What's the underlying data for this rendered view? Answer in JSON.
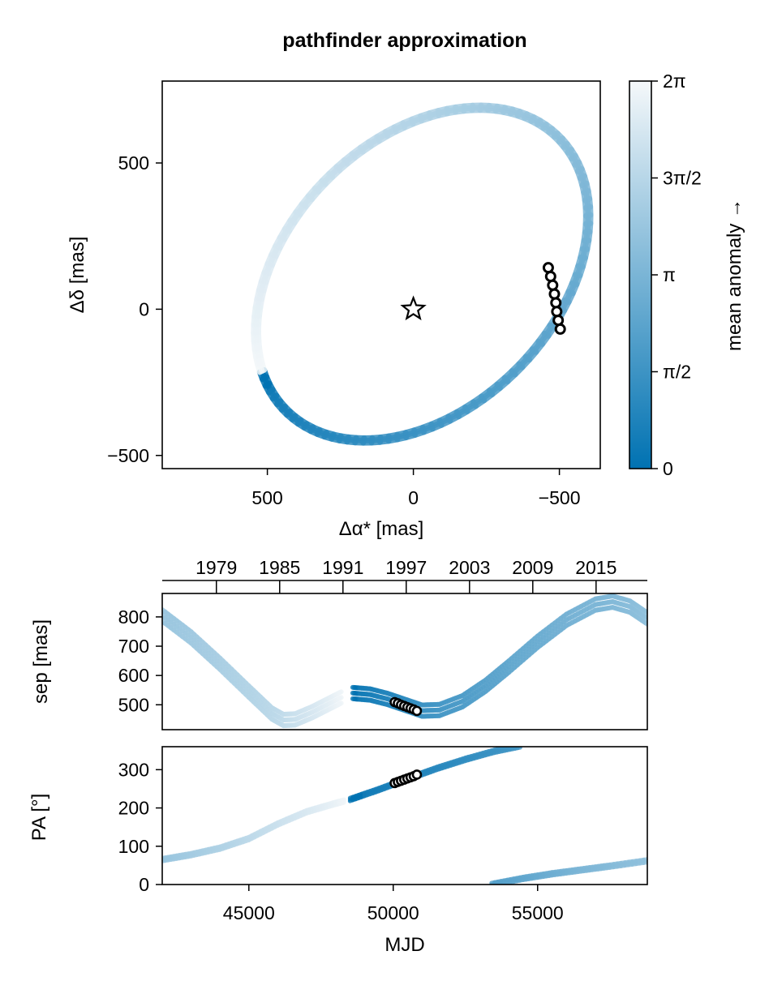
{
  "title": "pathfinder approximation",
  "colors": {
    "title": "#8b0000",
    "band_start": "#0072b2",
    "band_end": "#f5f8fa"
  },
  "chart_data": [
    {
      "id": "orbit",
      "type": "scatter",
      "xlabel": "Δα* [mas]",
      "ylabel": "Δδ [mas]",
      "xlim": [
        860,
        -640
      ],
      "ylim": [
        -545,
        780
      ],
      "x_reversed": true,
      "xticks": [
        500,
        0,
        -500
      ],
      "xtick_labels": [
        "500",
        "0",
        "−500"
      ],
      "yticks": [
        -500,
        0,
        500
      ],
      "ytick_labels": [
        "−500",
        "0",
        "500"
      ],
      "ellipse": {
        "center": [
          -30,
          120
        ],
        "semi_major": 660,
        "semi_minor": 460,
        "rotation_deg": -45
      },
      "star": {
        "x": 0,
        "y": 0,
        "marker": "star"
      },
      "observations": {
        "x": [
          -462,
          -470,
          -477,
          -483,
          -488,
          -491,
          -496,
          -503
        ],
        "y": [
          142,
          112,
          82,
          52,
          22,
          -8,
          -38,
          -68
        ]
      }
    },
    {
      "id": "colorbar",
      "type": "heatmap",
      "label": "mean anomaly →",
      "range": [
        0,
        6.2832
      ],
      "ticks": [
        0,
        1.5708,
        3.1416,
        4.7124,
        6.2832
      ],
      "tick_labels": [
        "0",
        "π/2",
        "π",
        "3π/2",
        "2π"
      ]
    },
    {
      "id": "separation",
      "type": "line",
      "ylabel": "sep [mas]",
      "xlim": [
        42000,
        58800
      ],
      "ylim": [
        415,
        880
      ],
      "yticks": [
        500,
        600,
        700,
        800
      ],
      "ytick_labels": [
        "500",
        "600",
        "700",
        "800"
      ],
      "top_axis_ticks": [
        43875,
        46067,
        48259,
        50450,
        52642,
        54833,
        57025
      ],
      "top_axis_labels": [
        "1979",
        "1985",
        "1991",
        "1997",
        "2003",
        "2009",
        "2015"
      ],
      "segments": [
        {
          "x": [
            42000,
            43000,
            44000,
            45000,
            45800,
            46200,
            46600,
            47200,
            47800,
            48200
          ],
          "y": [
            805,
            730,
            640,
            545,
            470,
            448,
            450,
            475,
            505,
            525
          ],
          "phase": [
            0.6,
            0.63,
            0.67,
            0.71,
            0.75,
            0.78,
            0.82,
            0.87,
            0.93,
            0.98
          ]
        },
        {
          "x": [
            48600,
            49200,
            49800,
            50400,
            51000,
            51600,
            52400,
            53200,
            54000,
            55000,
            56000,
            57000,
            57600,
            58200,
            58800
          ],
          "y": [
            540,
            535,
            520,
            500,
            480,
            482,
            512,
            565,
            630,
            715,
            790,
            842,
            852,
            835,
            795
          ],
          "phase": [
            0.0,
            0.05,
            0.1,
            0.15,
            0.2,
            0.24,
            0.28,
            0.32,
            0.36,
            0.4,
            0.44,
            0.48,
            0.51,
            0.54,
            0.57
          ]
        }
      ],
      "observations": {
        "x": [
          50050,
          50160,
          50270,
          50380,
          50490,
          50600,
          50710,
          50820
        ],
        "y": [
          509,
          505,
          500,
          496,
          492,
          488,
          484,
          479
        ]
      }
    },
    {
      "id": "position_angle",
      "type": "line",
      "ylabel": "PA [°]",
      "xlabel": "MJD",
      "xlim": [
        42000,
        58800
      ],
      "ylim": [
        0,
        360
      ],
      "xticks": [
        45000,
        50000,
        55000
      ],
      "xtick_labels": [
        "45000",
        "50000",
        "55000"
      ],
      "yticks": [
        0,
        100,
        200,
        300
      ],
      "ytick_labels": [
        "0",
        "100",
        "200",
        "300"
      ],
      "segments": [
        {
          "x": [
            42000,
            43000,
            44000,
            45000,
            46000,
            47000,
            48000,
            48300
          ],
          "y": [
            65,
            78,
            95,
            120,
            158,
            190,
            212,
            218
          ],
          "phase": [
            0.6,
            0.65,
            0.7,
            0.76,
            0.82,
            0.88,
            0.95,
            0.98
          ]
        },
        {
          "x": [
            48500,
            49500,
            50500,
            51500,
            52500,
            53500,
            54400
          ],
          "y": [
            222,
            248,
            276,
            303,
            327,
            348,
            362
          ],
          "phase": [
            0.0,
            0.04,
            0.08,
            0.12,
            0.16,
            0.2,
            0.24
          ]
        },
        {
          "x": [
            53400,
            54500,
            55500,
            56500,
            57500,
            58800
          ],
          "y": [
            0,
            16,
            28,
            38,
            48,
            62
          ],
          "phase": [
            0.3,
            0.36,
            0.42,
            0.48,
            0.52,
            0.57
          ]
        }
      ],
      "observations": {
        "x": [
          50050,
          50160,
          50270,
          50380,
          50490,
          50600,
          50710,
          50820
        ],
        "y": [
          265,
          268,
          271,
          274,
          277,
          280,
          283,
          287
        ]
      }
    }
  ]
}
